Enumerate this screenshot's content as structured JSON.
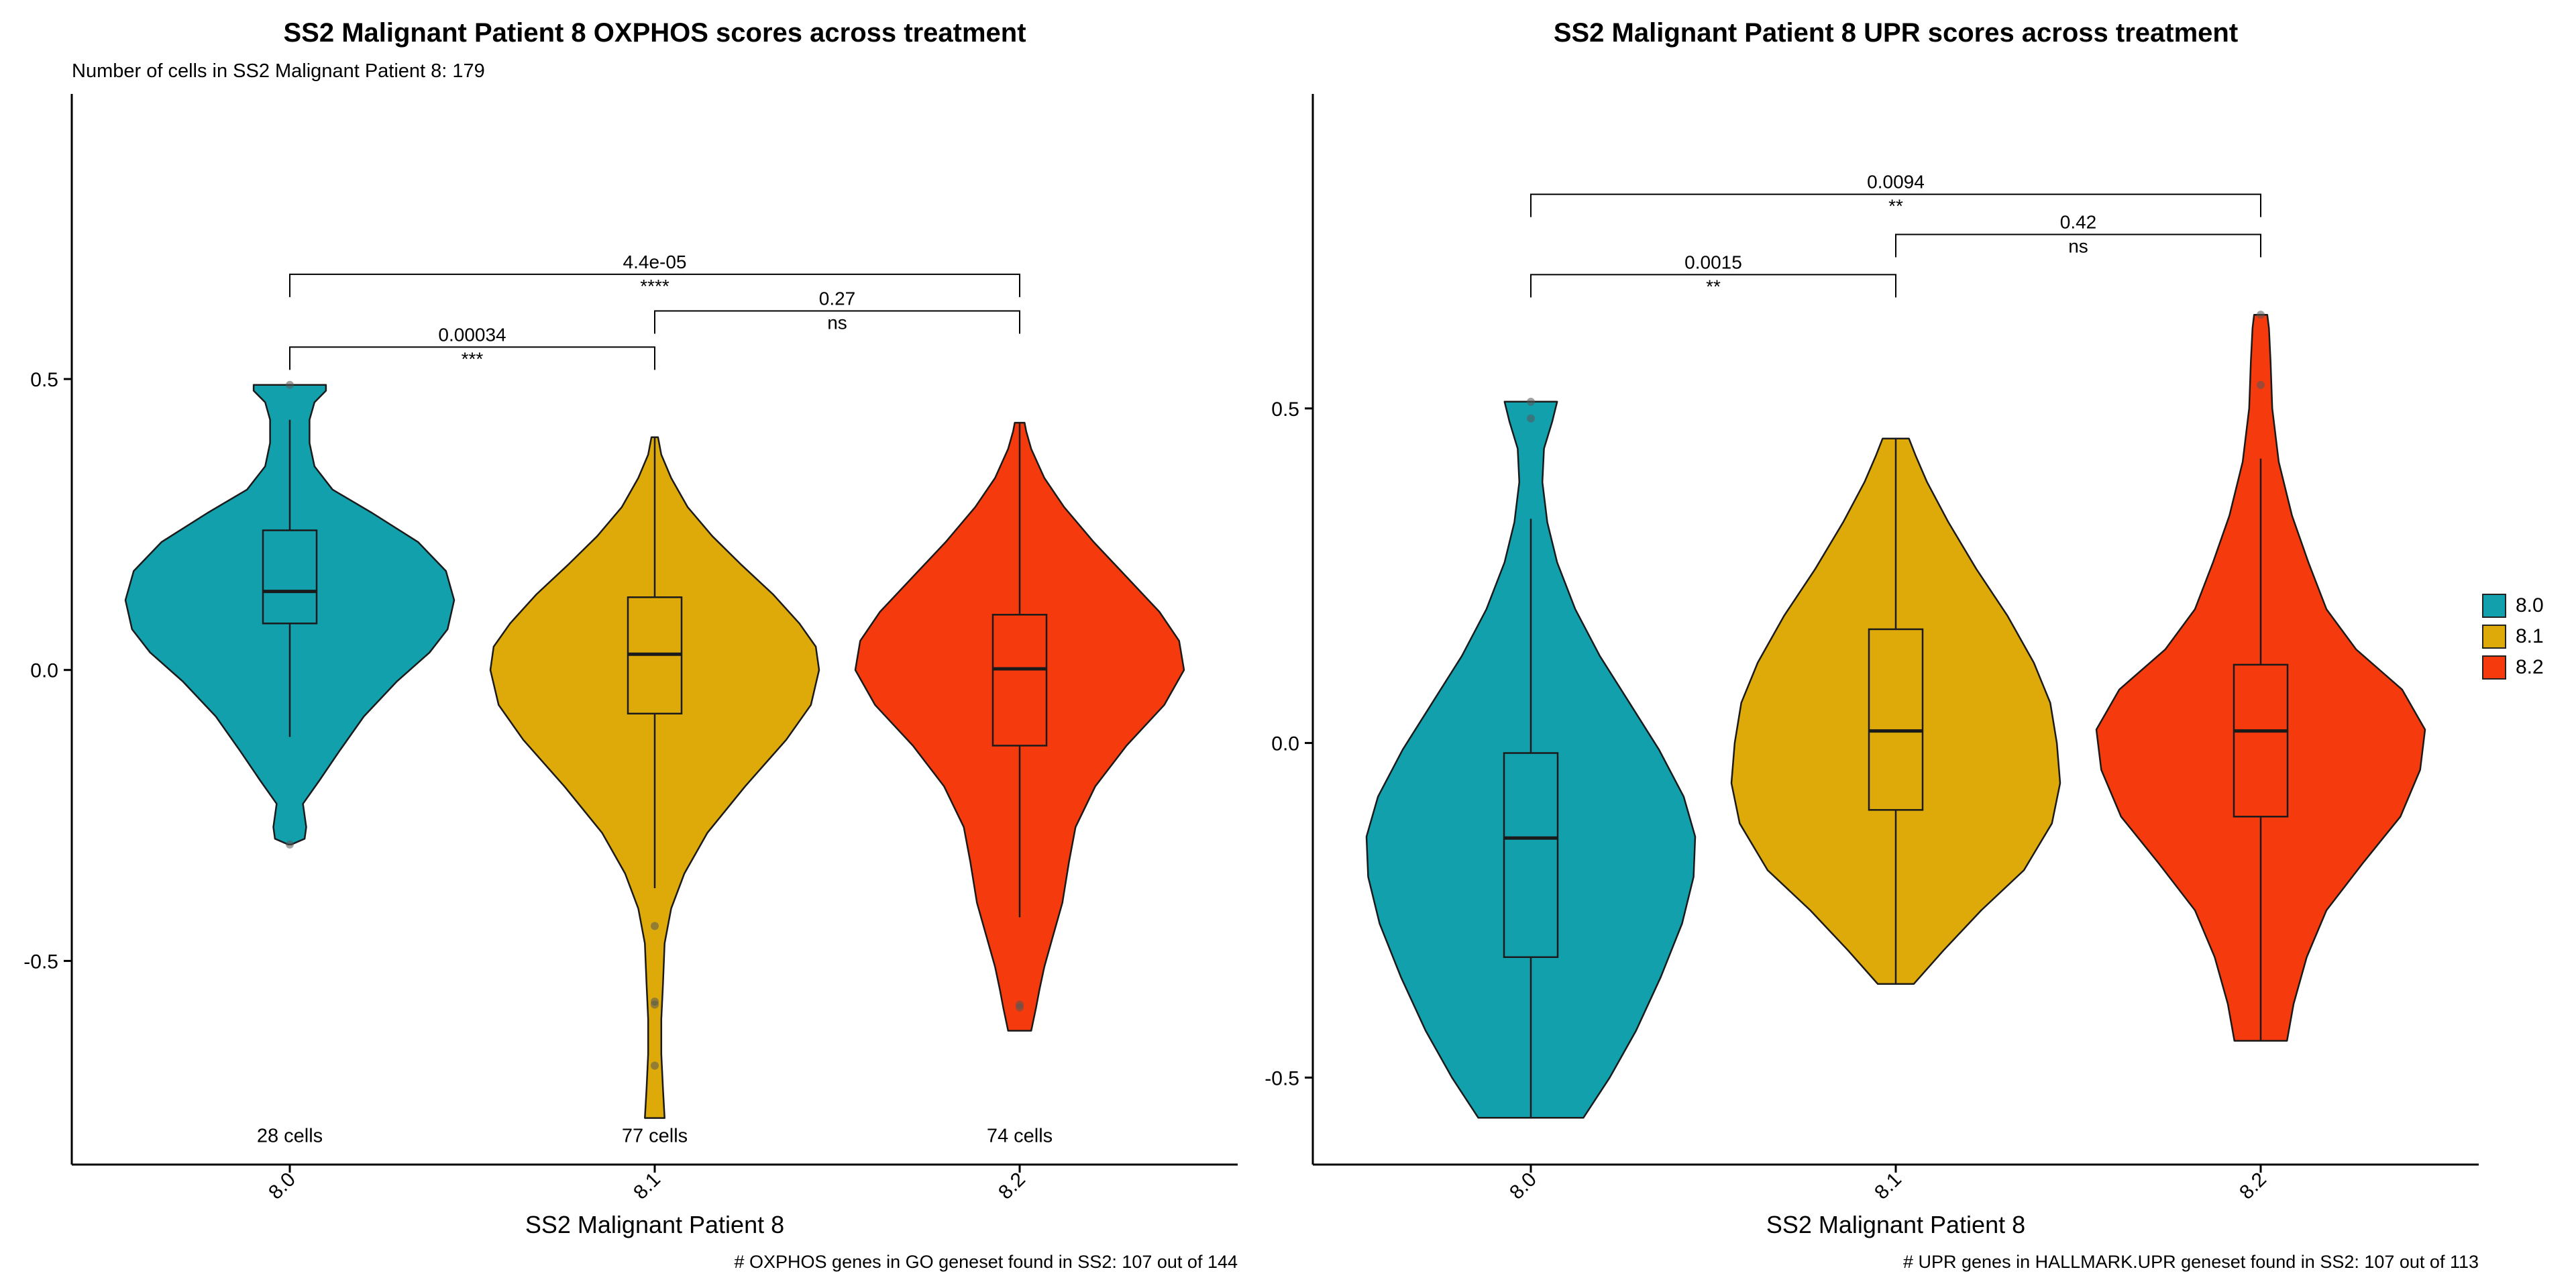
{
  "colors": {
    "8.0": "#13a0ad",
    "8.1": "#ddaa0a",
    "8.2": "#f53a0e",
    "outline": "#1a1a1a"
  },
  "legend": {
    "items": [
      {
        "label": "8.0",
        "color": "#13a0ad"
      },
      {
        "label": "8.1",
        "color": "#ddaa0a"
      },
      {
        "label": "8.2",
        "color": "#f53a0e"
      }
    ]
  },
  "chart_data": [
    {
      "type": "violin",
      "title": "SS2 Malignant Patient 8 OXPHOS scores across treatment",
      "subtitle": "Number of cells in SS2 Malignant Patient 8: 179",
      "xlabel": "SS2 Malignant Patient 8",
      "ylabel": "",
      "caption": "# OXPHOS genes in GO geneset found in SS2: 107 out of 144",
      "categories": [
        "8.0",
        "8.1",
        "8.2"
      ],
      "ylim": [
        -0.85,
        0.99
      ],
      "yticks": [
        -0.5,
        0.0,
        0.5
      ],
      "ytick_labels": [
        "-0.5",
        "0.0",
        "0.5"
      ],
      "grid": false,
      "cell_counts": [
        "28 cells",
        "77 cells",
        "74 cells"
      ],
      "cell_label_y": -0.8,
      "series": [
        {
          "category": "8.0",
          "box": {
            "q1": 0.08,
            "median": 0.135,
            "q3": 0.24,
            "whisker_low": -0.115,
            "whisker_high": 0.43
          },
          "range": [
            -0.3,
            0.49
          ],
          "density": [
            [
              -0.3,
              0.01
            ],
            [
              -0.29,
              0.09
            ],
            [
              -0.27,
              0.1
            ],
            [
              -0.23,
              0.08
            ],
            [
              -0.19,
              0.18
            ],
            [
              -0.14,
              0.3
            ],
            [
              -0.08,
              0.45
            ],
            [
              -0.02,
              0.65
            ],
            [
              0.03,
              0.85
            ],
            [
              0.07,
              0.96
            ],
            [
              0.12,
              1.0
            ],
            [
              0.17,
              0.95
            ],
            [
              0.22,
              0.78
            ],
            [
              0.27,
              0.5
            ],
            [
              0.31,
              0.26
            ],
            [
              0.35,
              0.15
            ],
            [
              0.39,
              0.12
            ],
            [
              0.43,
              0.12
            ],
            [
              0.46,
              0.15
            ],
            [
              0.48,
              0.22
            ],
            [
              0.49,
              0.22
            ]
          ],
          "outliers": [
            0.49,
            -0.3
          ]
        },
        {
          "category": "8.1",
          "box": {
            "q1": -0.075,
            "median": 0.027,
            "q3": 0.125,
            "whisker_low": -0.375,
            "whisker_high": 0.4
          },
          "range": [
            -0.77,
            0.4
          ],
          "density": [
            [
              -0.77,
              0.06
            ],
            [
              -0.72,
              0.05
            ],
            [
              -0.66,
              0.04
            ],
            [
              -0.6,
              0.04
            ],
            [
              -0.54,
              0.05
            ],
            [
              -0.47,
              0.06
            ],
            [
              -0.41,
              0.1
            ],
            [
              -0.35,
              0.18
            ],
            [
              -0.28,
              0.32
            ],
            [
              -0.2,
              0.55
            ],
            [
              -0.12,
              0.8
            ],
            [
              -0.06,
              0.95
            ],
            [
              0.0,
              1.0
            ],
            [
              0.04,
              0.98
            ],
            [
              0.08,
              0.88
            ],
            [
              0.13,
              0.72
            ],
            [
              0.18,
              0.53
            ],
            [
              0.23,
              0.35
            ],
            [
              0.28,
              0.2
            ],
            [
              0.33,
              0.1
            ],
            [
              0.37,
              0.04
            ],
            [
              0.4,
              0.02
            ]
          ],
          "outliers": [
            -0.44,
            -0.57,
            -0.575,
            -0.68
          ]
        },
        {
          "category": "8.2",
          "box": {
            "q1": -0.13,
            "median": 0.002,
            "q3": 0.095,
            "whisker_low": -0.425,
            "whisker_high": 0.425
          },
          "range": [
            -0.62,
            0.425
          ],
          "density": [
            [
              -0.62,
              0.07
            ],
            [
              -0.58,
              0.1
            ],
            [
              -0.55,
              0.12
            ],
            [
              -0.51,
              0.15
            ],
            [
              -0.46,
              0.2
            ],
            [
              -0.4,
              0.26
            ],
            [
              -0.33,
              0.3
            ],
            [
              -0.27,
              0.34
            ],
            [
              -0.2,
              0.46
            ],
            [
              -0.13,
              0.65
            ],
            [
              -0.06,
              0.88
            ],
            [
              0.0,
              1.0
            ],
            [
              0.05,
              0.97
            ],
            [
              0.1,
              0.85
            ],
            [
              0.16,
              0.65
            ],
            [
              0.22,
              0.45
            ],
            [
              0.28,
              0.27
            ],
            [
              0.33,
              0.15
            ],
            [
              0.38,
              0.07
            ],
            [
              0.41,
              0.04
            ],
            [
              0.425,
              0.03
            ]
          ],
          "outliers": [
            -0.575,
            -0.58
          ]
        }
      ],
      "comparisons": [
        {
          "from": "8.0",
          "to": "8.1",
          "p": "0.00034",
          "signif": "***",
          "y": 0.555
        },
        {
          "from": "8.1",
          "to": "8.2",
          "p": "0.27",
          "signif": "ns",
          "y": 0.617
        },
        {
          "from": "8.0",
          "to": "8.2",
          "p": "4.4e-05",
          "signif": "****",
          "y": 0.68
        }
      ]
    },
    {
      "type": "violin",
      "title": "SS2 Malignant Patient 8 UPR scores across treatment",
      "xlabel": "SS2 Malignant Patient 8",
      "ylabel": "",
      "caption": "# UPR genes in HALLMARK.UPR geneset found in SS2: 107 out of 113",
      "categories": [
        "8.0",
        "8.1",
        "8.2"
      ],
      "ylim": [
        -0.63,
        0.97
      ],
      "yticks": [
        -0.5,
        0.0,
        0.5
      ],
      "ytick_labels": [
        "-0.5",
        "0.0",
        "0.5"
      ],
      "grid": false,
      "series": [
        {
          "category": "8.0",
          "box": {
            "q1": -0.32,
            "median": -0.142,
            "q3": -0.015,
            "whisker_low": -0.56,
            "whisker_high": 0.335
          },
          "range": [
            -0.56,
            0.51
          ],
          "density": [
            [
              -0.56,
              0.32
            ],
            [
              -0.5,
              0.48
            ],
            [
              -0.43,
              0.64
            ],
            [
              -0.35,
              0.79
            ],
            [
              -0.27,
              0.92
            ],
            [
              -0.2,
              0.99
            ],
            [
              -0.14,
              1.0
            ],
            [
              -0.08,
              0.93
            ],
            [
              -0.01,
              0.78
            ],
            [
              0.06,
              0.6
            ],
            [
              0.13,
              0.42
            ],
            [
              0.2,
              0.27
            ],
            [
              0.27,
              0.16
            ],
            [
              0.33,
              0.1
            ],
            [
              0.39,
              0.07
            ],
            [
              0.44,
              0.08
            ],
            [
              0.48,
              0.13
            ],
            [
              0.51,
              0.16
            ]
          ],
          "outliers": [
            0.51,
            0.485
          ]
        },
        {
          "category": "8.1",
          "box": {
            "q1": -0.1,
            "median": 0.018,
            "q3": 0.17,
            "whisker_low": -0.36,
            "whisker_high": 0.455
          },
          "range": [
            -0.36,
            0.455
          ],
          "density": [
            [
              -0.36,
              0.11
            ],
            [
              -0.31,
              0.29
            ],
            [
              -0.25,
              0.52
            ],
            [
              -0.19,
              0.78
            ],
            [
              -0.12,
              0.95
            ],
            [
              -0.06,
              1.0
            ],
            [
              0.0,
              0.98
            ],
            [
              0.06,
              0.94
            ],
            [
              0.12,
              0.84
            ],
            [
              0.19,
              0.68
            ],
            [
              0.26,
              0.49
            ],
            [
              0.33,
              0.32
            ],
            [
              0.39,
              0.19
            ],
            [
              0.43,
              0.12
            ],
            [
              0.455,
              0.08
            ]
          ],
          "outliers": []
        },
        {
          "category": "8.2",
          "box": {
            "q1": -0.11,
            "median": 0.018,
            "q3": 0.117,
            "whisker_low": -0.445,
            "whisker_high": 0.425
          },
          "range": [
            -0.445,
            0.64
          ],
          "density": [
            [
              -0.445,
              0.16
            ],
            [
              -0.39,
              0.2
            ],
            [
              -0.32,
              0.28
            ],
            [
              -0.25,
              0.4
            ],
            [
              -0.18,
              0.62
            ],
            [
              -0.11,
              0.85
            ],
            [
              -0.04,
              0.97
            ],
            [
              0.02,
              1.0
            ],
            [
              0.08,
              0.86
            ],
            [
              0.14,
              0.58
            ],
            [
              0.2,
              0.4
            ],
            [
              0.27,
              0.29
            ],
            [
              0.34,
              0.19
            ],
            [
              0.42,
              0.11
            ],
            [
              0.5,
              0.07
            ],
            [
              0.57,
              0.06
            ],
            [
              0.62,
              0.05
            ],
            [
              0.64,
              0.04
            ]
          ],
          "outliers": [
            0.64,
            0.535
          ]
        }
      ],
      "comparisons": [
        {
          "from": "8.0",
          "to": "8.1",
          "p": "0.0015",
          "signif": "**",
          "y": 0.7
        },
        {
          "from": "8.1",
          "to": "8.2",
          "p": "0.42",
          "signif": "ns",
          "y": 0.76
        },
        {
          "from": "8.0",
          "to": "8.2",
          "p": "0.0094",
          "signif": "**",
          "y": 0.82
        }
      ]
    }
  ]
}
